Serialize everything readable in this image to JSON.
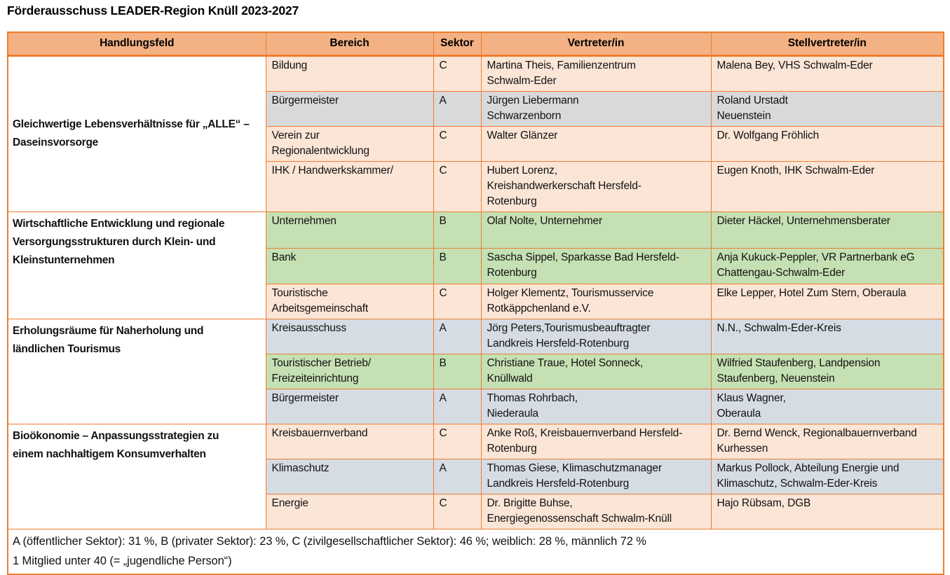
{
  "title": "Förderausschuss LEADER-Region Knüll 2023-2027",
  "colors": {
    "border": "#ED7D31",
    "header_rule": "#ED7D31",
    "header_fill": "#F4B183",
    "handlungsfeld_fill": "#FFFFFF",
    "row_fills": {
      "peach": "#FBE5D6",
      "gray": "#D9D9D9",
      "bluegray": "#D6DCE4",
      "green": "#C5E0B3"
    }
  },
  "table": {
    "headers": [
      "Handlungsfeld",
      "Bereich",
      "Sektor",
      "Vertreter/in",
      "Stellvertreter/in"
    ],
    "groups": [
      {
        "handlungsfeld": "Gleichwertige Lebensverhältnisse für „ALLE“ –\nDaseinsvorsorge",
        "valign": "middle",
        "rows": [
          {
            "bereich": "Bildung",
            "sektor": "C",
            "vertreter": "Martina Theis, Familienzentrum\nSchwalm-Eder",
            "stellvertreter": "Malena Bey, VHS Schwalm-Eder",
            "fill": "peach"
          },
          {
            "bereich": "Bürgermeister",
            "sektor": "A",
            "vertreter": "Jürgen Liebermann\nSchwarzenborn",
            "stellvertreter": "Roland Urstadt\nNeuenstein",
            "fill": "gray"
          },
          {
            "bereich": "Verein zur\nRegionalentwicklung",
            "sektor": "C",
            "vertreter": "Walter Glänzer",
            "stellvertreter": "Dr. Wolfgang Fröhlich",
            "fill": "peach"
          },
          {
            "bereich": "IHK / Handwerkskammer/",
            "sektor": "C",
            "vertreter": "Hubert Lorenz,\nKreishandwerkerschaft Hersfeld-\nRotenburg",
            "stellvertreter": "Eugen Knoth, IHK Schwalm-Eder",
            "fill": "peach"
          }
        ]
      },
      {
        "handlungsfeld": "Wirtschaftliche Entwicklung und regionale\nVersorgungsstrukturen durch Klein- und\nKleinstunternehmen",
        "valign": "top",
        "rows": [
          {
            "bereich": "Unternehmen",
            "sektor": "B",
            "vertreter": "Olaf Nolte, Unternehmer",
            "stellvertreter": "Dieter Häckel, Unternehmensberater",
            "fill": "green"
          },
          {
            "bereich": "Bank",
            "sektor": "B",
            "vertreter": "Sascha Sippel, Sparkasse Bad Hersfeld-\nRotenburg",
            "stellvertreter": "Anja Kukuck-Peppler, VR Partnerbank eG\nChattengau-Schwalm-Eder",
            "fill": "green"
          },
          {
            "bereich": "Touristische\nArbeitsgemeinschaft",
            "sektor": "C",
            "vertreter": "Holger Klementz, Tourismusservice\nRotkäppchenland e.V.",
            "stellvertreter": "Elke Lepper, Hotel Zum Stern, Oberaula",
            "fill": "peach"
          }
        ]
      },
      {
        "handlungsfeld": "Erholungsräume für Naherholung und\nländlichen Tourismus",
        "valign": "top",
        "rows": [
          {
            "bereich": "Kreisausschuss",
            "sektor": "A",
            "vertreter": "Jörg Peters,Tourismusbeauftragter\nLandkreis Hersfeld-Rotenburg",
            "stellvertreter": "N.N., Schwalm-Eder-Kreis",
            "fill": "bluegray"
          },
          {
            "bereich": "Touristischer Betrieb/\nFreizeiteinrichtung",
            "sektor": "B",
            "vertreter": "Christiane Traue, Hotel Sonneck,\nKnüllwald",
            "stellvertreter": "Wilfried Staufenberg, Landpension\nStaufenberg, Neuenstein",
            "fill": "green"
          },
          {
            "bereich": "Bürgermeister",
            "sektor": "A",
            "vertreter": "Thomas Rohrbach,\nNiederaula",
            "stellvertreter": "Klaus Wagner,\nOberaula",
            "fill": "bluegray"
          }
        ]
      },
      {
        "handlungsfeld": "Bioökonomie – Anpassungsstrategien zu\neinem nachhaltigem Konsumverhalten",
        "valign": "top",
        "rows": [
          {
            "bereich": "Kreisbauernverband",
            "sektor": "C",
            "vertreter": "Anke Roß, Kreisbauernverband Hersfeld-\nRotenburg",
            "stellvertreter": "Dr. Bernd Wenck, Regionalbauernverband\nKurhessen",
            "fill": "peach"
          },
          {
            "bereich": "Klimaschutz",
            "sektor": "A",
            "vertreter": "Thomas Giese, Klimaschutzmanager\nLandkreis Hersfeld-Rotenburg",
            "stellvertreter": "Markus Pollock, Abteilung Energie und\nKlimaschutz, Schwalm-Eder-Kreis",
            "fill": "bluegray"
          },
          {
            "bereich": "Energie",
            "sektor": "C",
            "vertreter": "Dr. Brigitte Buhse,\nEnergiegenossenschaft Schwalm-Knüll",
            "stellvertreter": "Hajo Rübsam, DGB",
            "fill": "peach"
          }
        ]
      }
    ],
    "footer": {
      "line1": "A (öffentlicher Sektor): 31 %, B (privater Sektor): 23 %, C (zivilgesellschaftlicher Sektor): 46 %; weiblich: 28 %, männlich 72 %",
      "line2": "1 Mitglied unter 40 (= „jugendliche Person“)"
    }
  }
}
